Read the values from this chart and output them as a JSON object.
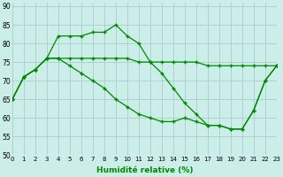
{
  "title": "",
  "xlabel": "Humidité relative (%)",
  "ylabel": "",
  "background_color": "#cceee8",
  "grid_color": "#aacccc",
  "line_color": "#008800",
  "xlim": [
    0,
    23
  ],
  "ylim": [
    50,
    91
  ],
  "yticks": [
    50,
    55,
    60,
    65,
    70,
    75,
    80,
    85,
    90
  ],
  "xticks": [
    0,
    1,
    2,
    3,
    4,
    5,
    6,
    7,
    8,
    9,
    10,
    11,
    12,
    13,
    14,
    15,
    16,
    17,
    18,
    19,
    20,
    21,
    22,
    23
  ],
  "series1": [
    65,
    71,
    73,
    76,
    82,
    82,
    82,
    83,
    83,
    85,
    82,
    80,
    75,
    72,
    68,
    64,
    61,
    58,
    58,
    57,
    57,
    62,
    70,
    74
  ],
  "series2": [
    65,
    71,
    73,
    76,
    76,
    76,
    76,
    76,
    76,
    76,
    76,
    75,
    75,
    75,
    75,
    75,
    75,
    74,
    74,
    74,
    74,
    74,
    74,
    74
  ],
  "series3": [
    65,
    71,
    73,
    76,
    76,
    74,
    72,
    70,
    68,
    65,
    63,
    61,
    60,
    59,
    59,
    60,
    59,
    58,
    58,
    57,
    57,
    62,
    70,
    74
  ]
}
